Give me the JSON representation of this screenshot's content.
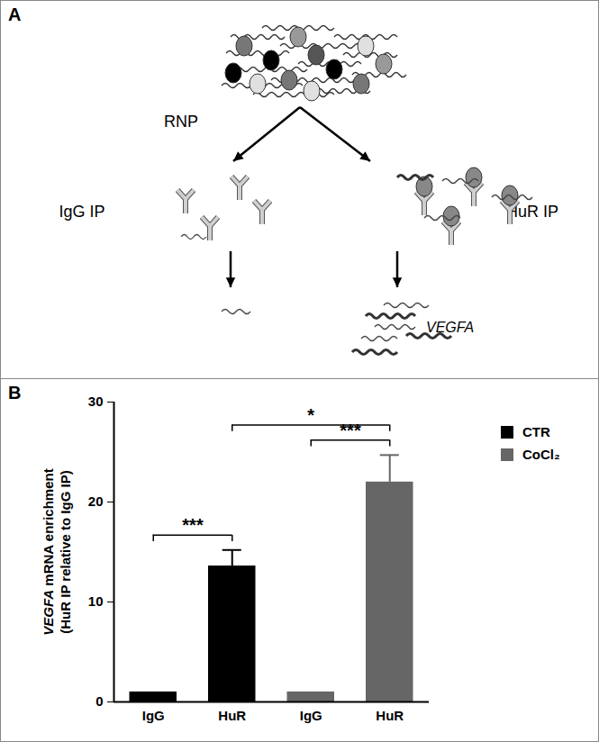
{
  "diagram": {
    "panel_label": "A",
    "nodes": [
      {
        "label": "RNP"
      },
      {
        "label": "IgG IP"
      },
      {
        "label": "HuR IP"
      },
      {
        "label": "VEGFA"
      }
    ]
  },
  "chart_data": {
    "panel_label": "B",
    "type": "bar",
    "y_label": "VEGFA mRNA enrichment (HuR IP relative to IgG IP)",
    "categories": [
      "IgG",
      "HuR",
      "IgG",
      "HuR"
    ],
    "series": [
      {
        "name": "CTR",
        "color": "#000000",
        "values": [
          1,
          13.6,
          null,
          null
        ],
        "errors": [
          0,
          1.6,
          null,
          null
        ]
      },
      {
        "name": "CoCl₂",
        "color": "#666666",
        "values": [
          null,
          null,
          1,
          22
        ],
        "errors": [
          null,
          null,
          0,
          2.7
        ]
      }
    ],
    "ylim": [
      0,
      30
    ],
    "yticks": [
      0,
      10,
      20,
      30
    ],
    "legend": "top-right",
    "annotations": [
      {
        "from": 0,
        "to": 1,
        "label": "***"
      },
      {
        "from": 1,
        "to": 3,
        "label": "*"
      },
      {
        "from": 2,
        "to": 3,
        "label": "***"
      }
    ]
  }
}
